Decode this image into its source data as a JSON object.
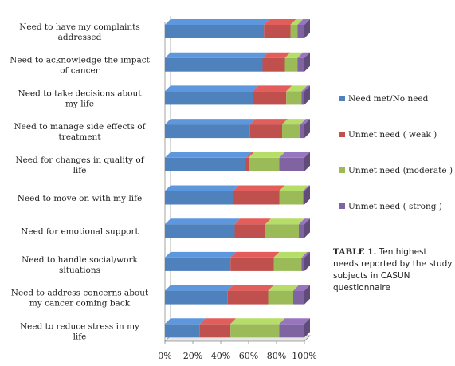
{
  "chart_data": {
    "type": "bar",
    "orientation": "horizontal",
    "stacked": true,
    "percent_stacked": true,
    "categories": [
      "Need to have my complaints addressed",
      "Need to acknowledge the impact of cancer",
      "Need to take decisions about my life",
      "Need to manage side effects of treatment",
      "Need for changes in quality of life",
      "Need to move on with my life",
      "Need for emotional support",
      "Need to handle social/work situations",
      "Need to address concerns about my cancer coming back",
      "Need to reduce stress in my life"
    ],
    "series": [
      {
        "name": "Need met/No need",
        "color": "#4f81bd",
        "values": [
          71,
          70,
          63,
          61,
          58,
          49,
          50,
          47,
          45,
          25
        ]
      },
      {
        "name": "Unmet need ( weak )",
        "color": "#c0504d",
        "values": [
          19,
          16,
          24,
          23,
          2,
          33,
          22,
          31,
          29,
          22
        ]
      },
      {
        "name": "Unmet need (moderate )",
        "color": "#9bbb59",
        "values": [
          5,
          9,
          11,
          13,
          22,
          17,
          24,
          20,
          18,
          35
        ]
      },
      {
        "name": "Unmet need ( strong )",
        "color": "#8064a2",
        "values": [
          5,
          5,
          2,
          3,
          18,
          1,
          4,
          2,
          8,
          18
        ]
      }
    ],
    "xlim": [
      0,
      100
    ],
    "x_ticks": [
      "0%",
      "20%",
      "40%",
      "60%",
      "80%",
      "100%"
    ],
    "grid": false,
    "legend_position": "right"
  },
  "caption": {
    "label": "TABLE 1.",
    "text": "Ten highest needs reported by the study subjects in CASUN questionnaire"
  }
}
